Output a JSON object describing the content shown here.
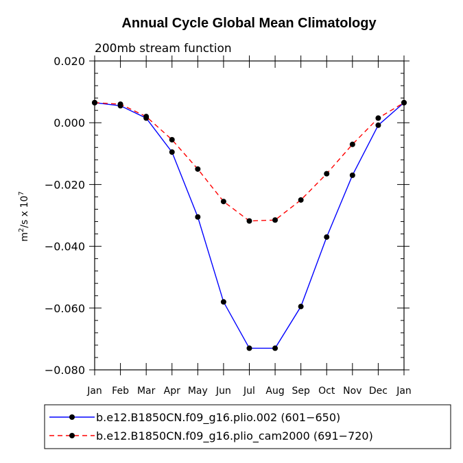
{
  "chart_data": {
    "type": "line",
    "title": "Annual Cycle Global Mean Climatology",
    "subtitle": "200mb stream function",
    "ylabel_base": "m",
    "ylabel_sup1": "2",
    "ylabel_mid": "/s x 10",
    "ylabel_sup2": "7",
    "categories": [
      "Jan",
      "Feb",
      "Mar",
      "Apr",
      "May",
      "Jun",
      "Jul",
      "Aug",
      "Sep",
      "Oct",
      "Nov",
      "Dec",
      "Jan"
    ],
    "ylim": [
      -0.08,
      0.02
    ],
    "yticks": [
      0.02,
      0.0,
      -0.02,
      -0.04,
      -0.06,
      -0.08
    ],
    "ytick_labels": [
      "0.020",
      "0.000",
      "−0.020",
      "−0.040",
      "−0.060",
      "−0.080"
    ],
    "legend_placement": "bottom",
    "series": [
      {
        "name": "b.e12.B1850CN.f09_g16.plio.002 (601−650)",
        "color": "#0000ff",
        "dash": "solid",
        "values": [
          0.0065,
          0.0055,
          0.0015,
          -0.0095,
          -0.0305,
          -0.058,
          -0.073,
          -0.073,
          -0.0595,
          -0.037,
          -0.017,
          -0.0008,
          0.0065
        ]
      },
      {
        "name": "b.e12.B1850CN.f09_g16.plio_cam2000 (691−720)",
        "color": "#ff0000",
        "dash": "dashed",
        "values": [
          0.0065,
          0.006,
          0.002,
          -0.0055,
          -0.015,
          -0.0255,
          -0.0318,
          -0.0315,
          -0.025,
          -0.0165,
          -0.007,
          0.0015,
          0.0065
        ]
      }
    ]
  }
}
